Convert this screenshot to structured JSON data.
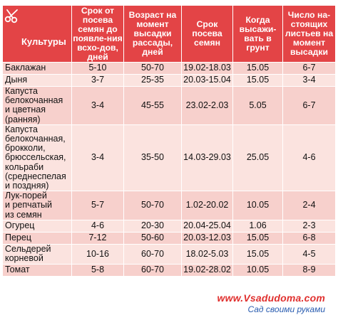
{
  "table": {
    "headers": [
      "Культуры",
      "Срок от посева семян до появле-ния всхо-дов, дней",
      "Возраст на момент высадки рассады, дней",
      "Срок посева семян",
      "Когда высажи-вать в грунт",
      "Число на-стоящих листьев на момент высадки"
    ],
    "rows": [
      {
        "name": [
          "Баклажан"
        ],
        "germination": "5-10",
        "seedling_age": "50-70",
        "sowing": "19.02-18.03",
        "planting": "15.05",
        "leaves": "6-7"
      },
      {
        "name": [
          "Дыня"
        ],
        "germination": "3-7",
        "seedling_age": "25-35",
        "sowing": "20.03-15.04",
        "planting": "15.05",
        "leaves": "3-4"
      },
      {
        "name": [
          "Капуста",
          "белокочанная",
          "и цветная",
          "(ранняя)"
        ],
        "germination": "3-4",
        "seedling_age": "45-55",
        "sowing": "23.02-2.03",
        "planting": "5.05",
        "leaves": "6-7"
      },
      {
        "name": [
          "Капуста",
          "белокочанная,",
          "брокколи,",
          "брюссельская,",
          "кольраби",
          "(среднеспелая",
          "и поздняя)"
        ],
        "germination": "3-4",
        "seedling_age": "35-50",
        "sowing": "14.03-29.03",
        "planting": "25.05",
        "leaves": "4-6"
      },
      {
        "name": [
          "Лук-порей",
          "и репчатый",
          "из семян"
        ],
        "germination": "5-7",
        "seedling_age": "50-70",
        "sowing": "1.02-20.02",
        "planting": "10.05",
        "leaves": "2-4"
      },
      {
        "name": [
          "Огурец"
        ],
        "germination": "4-6",
        "seedling_age": "20-30",
        "sowing": "20.04-25.04",
        "planting": "1.06",
        "leaves": "2-3"
      },
      {
        "name": [
          "Перец"
        ],
        "germination": "7-12",
        "seedling_age": "50-60",
        "sowing": "20.03-12.03",
        "planting": "15.05",
        "leaves": "6-8"
      },
      {
        "name": [
          "Сельдерей",
          "корневой"
        ],
        "germination": "10-16",
        "seedling_age": "60-70",
        "sowing": "18.02-5.03",
        "planting": "15.05",
        "leaves": "4-5"
      },
      {
        "name": [
          "Томат"
        ],
        "germination": "5-8",
        "seedling_age": "60-70",
        "sowing": "19.02-28.02",
        "planting": "10.05",
        "leaves": "8-9"
      }
    ]
  },
  "watermark": {
    "url": "www.Vsadudoma.com",
    "tagline": "Сад своими руками"
  },
  "colors": {
    "header_bg": "#e34446",
    "header_text": "#ffffff",
    "row_bg": "#f7d0cc",
    "row_alt_bg": "#fbe3df",
    "watermark_url": "#e0302e",
    "watermark_tagline": "#2a5db0"
  },
  "icons": {
    "header_icon": "scissors-icon"
  }
}
